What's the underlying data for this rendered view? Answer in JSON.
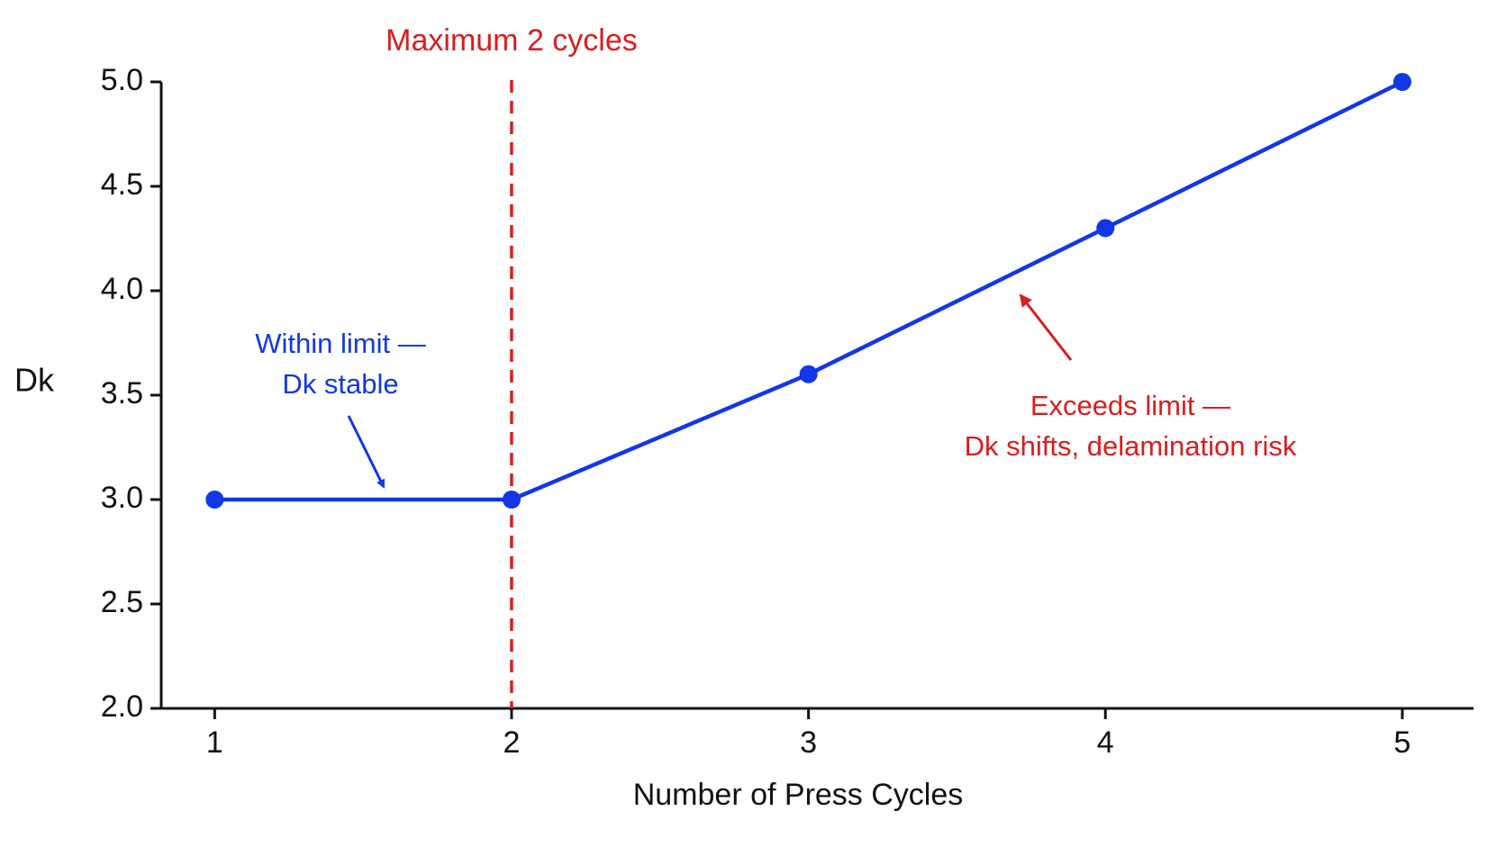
{
  "chart_data": {
    "type": "line",
    "x_label": "Number of Press Cycles",
    "y_label": "Dk",
    "x": [
      1,
      2,
      3,
      4,
      5
    ],
    "series": [
      {
        "name": "Dk",
        "color": "#1237e6",
        "values": [
          3.0,
          3.0,
          3.6,
          4.3,
          5.0
        ]
      }
    ],
    "xlim": [
      0.82,
      5.24
    ],
    "xticks": [
      1,
      2,
      3,
      4,
      5
    ],
    "ylim": [
      2.0,
      5.0
    ],
    "yticks": [
      {
        "value": 2,
        "label": "2.0"
      },
      {
        "value": 2.5,
        "label": "2.5"
      },
      {
        "value": 3,
        "label": "3.0"
      },
      {
        "value": 3.5,
        "label": "3.5"
      },
      {
        "value": 4,
        "label": "4.0"
      },
      {
        "value": 4.5,
        "label": "4.5"
      },
      {
        "value": 5,
        "label": "5.0"
      }
    ],
    "grid": false,
    "limit_line": {
      "x": 2,
      "label": "Maximum 2 cycles",
      "color": "#d81e1e"
    },
    "annotations": [
      {
        "lines": [
          "Within limit —",
          "Dk stable"
        ],
        "color": "#1237e6"
      },
      {
        "lines": [
          "Exceeds limit —",
          "Dk shifts, delamination risk"
        ],
        "color": "#d81e1e"
      }
    ]
  }
}
